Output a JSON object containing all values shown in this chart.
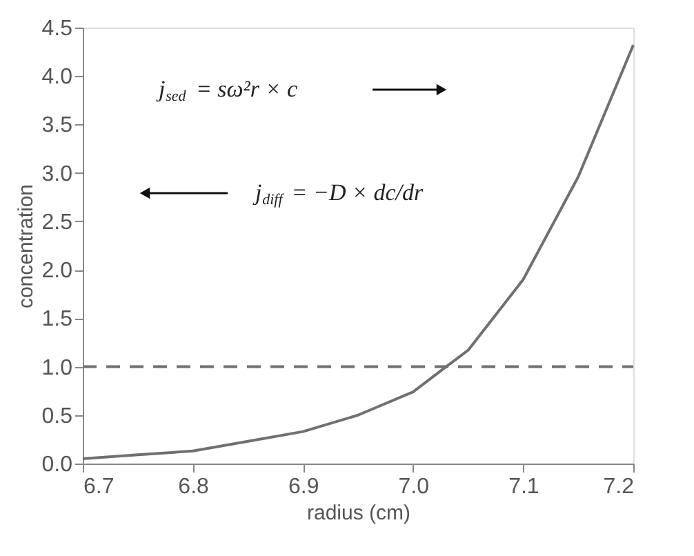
{
  "chart_data": {
    "type": "line",
    "xlabel": "radius (cm)",
    "ylabel": "concentration",
    "x": [
      6.7,
      6.75,
      6.8,
      6.85,
      6.9,
      6.95,
      7.0,
      7.03,
      7.05,
      7.1,
      7.15,
      7.175,
      7.2
    ],
    "series": [
      {
        "color": "#707070",
        "values": [
          0.05,
          0.09,
          0.13,
          0.23,
          0.33,
          0.5,
          0.74,
          1.0,
          1.17,
          1.9,
          2.96,
          3.64,
          4.32
        ]
      }
    ],
    "xlim": [
      6.7,
      7.2
    ],
    "xticks": [
      6.7,
      6.8,
      6.9,
      {
        "value": 7,
        "label": "7.0"
      },
      7.1,
      7.2
    ],
    "ylim": [
      0,
      4.5
    ],
    "yticks": [
      {
        "value": 0,
        "label": "0.0"
      },
      0.5,
      {
        "value": 1,
        "label": "1.0"
      },
      1.5,
      {
        "value": 2,
        "label": "2.0"
      },
      2.5,
      {
        "value": 3,
        "label": "3.0"
      },
      3.5,
      {
        "value": 4,
        "label": "4.0"
      },
      4.5
    ],
    "ref_lines": [
      {
        "axis": "y",
        "value": 1.0,
        "color": "#707070",
        "line_style": "dashed"
      }
    ],
    "annotations": [
      "j$_{sed}$ = sω²r × c",
      "j$_{diff}$ = −D × dc/dr"
    ],
    "grid": false,
    "marker": "none",
    "line_style": "solid"
  }
}
